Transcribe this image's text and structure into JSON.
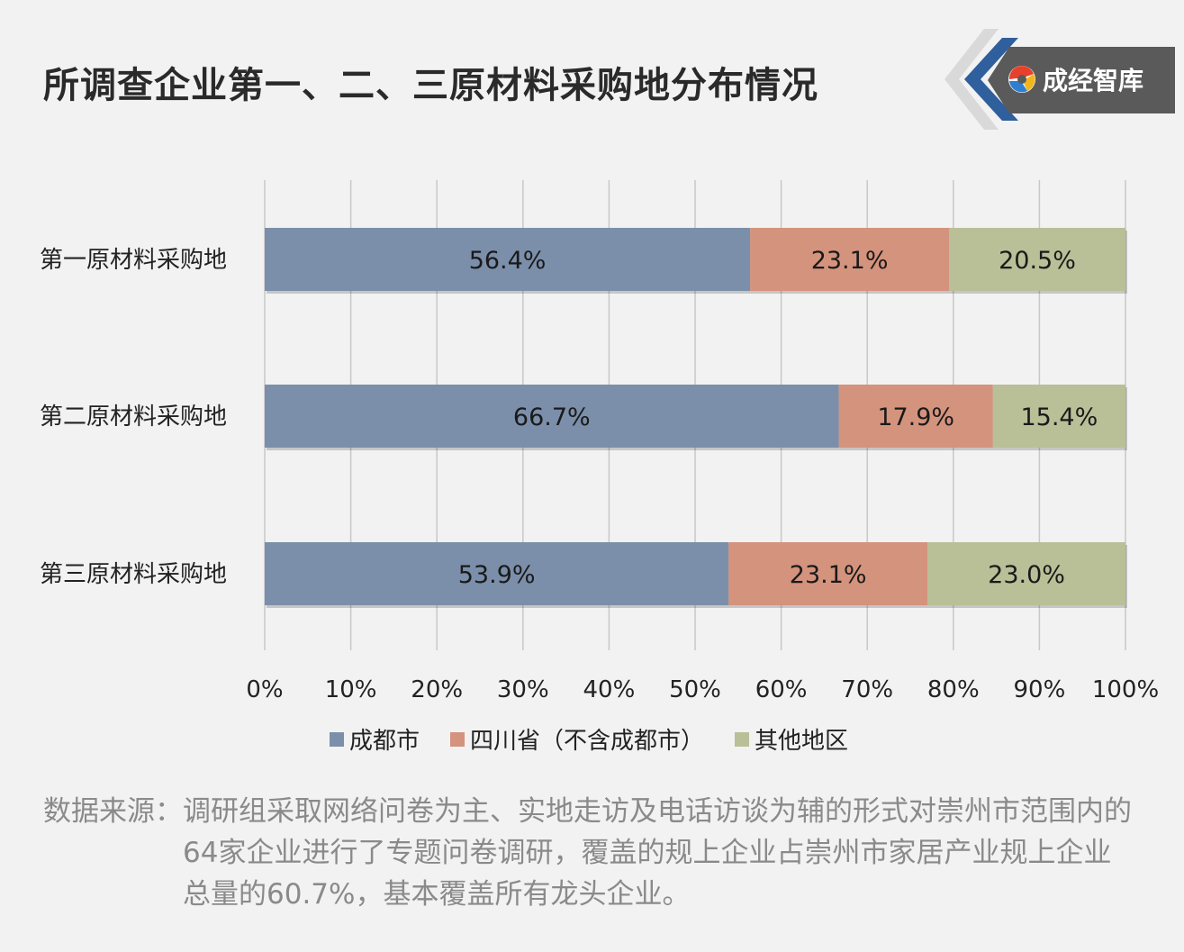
{
  "title": "所调查企业第一、二、三原材料采购地分布情况",
  "logo": {
    "text": "成经智库"
  },
  "chart_data": {
    "type": "bar",
    "orientation": "horizontal",
    "stacked": true,
    "categories": [
      "第一原材料采购地",
      "第二原材料采购地",
      "第三原材料采购地"
    ],
    "series": [
      {
        "name": "成都市",
        "color": "#7b8faa",
        "values": [
          56.4,
          66.7,
          53.9
        ],
        "labels": [
          "56.4%",
          "66.7%",
          "53.9%"
        ]
      },
      {
        "name": "四川省（不含成都市）",
        "color": "#d4937d",
        "values": [
          23.1,
          17.9,
          23.1
        ],
        "labels": [
          "23.1%",
          "17.9%",
          "23.1%"
        ]
      },
      {
        "name": "其他地区",
        "color": "#b9bf97",
        "values": [
          20.5,
          15.4,
          23.0
        ],
        "labels": [
          "20.5%",
          "15.4%",
          "23.0%"
        ]
      }
    ],
    "xlim": [
      0,
      100
    ],
    "xticks": [
      "0%",
      "10%",
      "20%",
      "30%",
      "40%",
      "50%",
      "60%",
      "70%",
      "80%",
      "90%",
      "100%"
    ],
    "grid": "vertical",
    "legend_position": "bottom"
  },
  "source": {
    "label": "数据来源：",
    "text": "调研组采取网络问卷为主、实地走访及电话访谈为辅的形式对崇州市范围内的64家企业进行了专题问卷调研，覆盖的规上企业占崇州市家居产业规上企业总量的60.7%，基本覆盖所有龙头企业。"
  }
}
